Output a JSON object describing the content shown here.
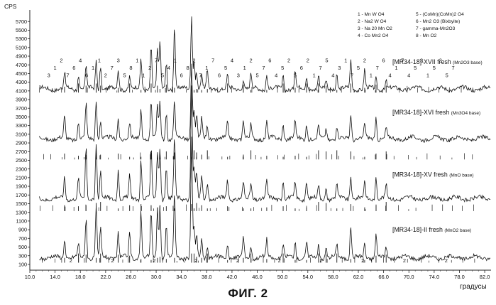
{
  "figure": {
    "caption": "ФИГ. 2",
    "y_unit": "CPS",
    "x_unit": "градусы"
  },
  "legend": {
    "items": [
      "1 - Mn W O4",
      "2 - Na2 W O4",
      "3 - Na 20 Mn O2",
      "4 - Co Mn2 O4",
      "5 - (CoMn)(CoMn)2 O4",
      "6 - Mn2 O3 (Bixbyite)",
      "7 - gamma-Mn2O3",
      "8 - Mn O2"
    ]
  },
  "chart_data": {
    "type": "line",
    "xlabel": "градусы",
    "ylabel": "CPS",
    "xlim": [
      10.0,
      83.0
    ],
    "ylim": [
      0,
      5900
    ],
    "x_ticks": [
      "10.0",
      "14.0",
      "18.0",
      "22.0",
      "26.0",
      "30.0",
      "34.0",
      "38.0",
      "42.0",
      "46.0",
      "50.0",
      "54.0",
      "58.0",
      "62.0",
      "66.0",
      "70.0",
      "74.0",
      "78.0",
      "82.0"
    ],
    "y_ticks": [
      "100",
      "300",
      "500",
      "700",
      "900",
      "1100",
      "1300",
      "1500",
      "1700",
      "1900",
      "2100",
      "2300",
      "2500",
      "2700",
      "2900",
      "3100",
      "3300",
      "3500",
      "3700",
      "3900",
      "4100",
      "4300",
      "4500",
      "4700",
      "4900",
      "5100",
      "5300",
      "5500",
      "5700"
    ],
    "peaks_2theta": [
      15.5,
      17.7,
      18.9,
      20.5,
      21.2,
      24.0,
      25.8,
      27.6,
      29.2,
      30.2,
      30.6,
      31.6,
      32.9,
      35.6,
      36.0,
      36.4,
      37.2,
      38.1,
      41.3,
      43.8,
      45.0,
      47.5,
      50.1,
      52.0,
      53.8,
      55.7,
      56.9,
      58.6,
      60.8,
      63.0,
      64.8,
      66.4
    ],
    "series": [
      {
        "name": "[MR34-18]-XVII fresh",
        "note": "(Mn2O3 base)",
        "baseline": 4150,
        "intensities": [
          360,
          300,
          550,
          650,
          550,
          450,
          300,
          700,
          1000,
          900,
          1100,
          600,
          1500,
          1750,
          700,
          400,
          350,
          400,
          300,
          250,
          350,
          350,
          300,
          450,
          300,
          300,
          200,
          350,
          650,
          450,
          250,
          200
        ]
      },
      {
        "name": "[MR34-18]-XVI fresh",
        "note": "(Mn3O4 base)",
        "baseline": 3000,
        "intensities": [
          500,
          400,
          800,
          900,
          450,
          500,
          350,
          700,
          900,
          800,
          850,
          600,
          900,
          1750,
          650,
          550,
          450,
          300,
          350,
          450,
          300,
          400,
          350,
          400,
          350,
          300,
          250,
          300,
          600,
          350,
          500,
          250
        ]
      },
      {
        "name": "[MR34-18]-XV fresh",
        "note": "(MnO base)",
        "baseline": 1620,
        "intensities": [
          500,
          450,
          1200,
          1300,
          650,
          700,
          500,
          900,
          1200,
          1100,
          1200,
          800,
          1400,
          2650,
          700,
          600,
          500,
          350,
          450,
          350,
          350,
          400,
          450,
          350,
          400,
          300,
          250,
          350,
          550,
          400,
          500,
          300
        ]
      },
      {
        "name": "[MR34-18]-II fresh",
        "note": "(MnO2 base)",
        "baseline": 260,
        "intensities": [
          450,
          300,
          950,
          1150,
          650,
          600,
          550,
          1100,
          1050,
          1150,
          1200,
          750,
          1500,
          2750,
          650,
          500,
          450,
          300,
          350,
          450,
          300,
          400,
          300,
          350,
          350,
          300,
          250,
          300,
          750,
          350,
          550,
          250
        ]
      }
    ],
    "top_peak_labels": [
      "3",
      "1",
      "2",
      "7",
      "6",
      "4",
      "6",
      "1",
      "1",
      "2",
      "7",
      "3",
      "5",
      "8",
      "1",
      "1",
      "2",
      "7",
      "5",
      "4",
      "1",
      "6",
      "8",
      "2",
      "7",
      "1",
      "7",
      "6",
      "5",
      "4",
      "3",
      "1",
      "2",
      "5",
      "7",
      "6",
      "4",
      "5",
      "2",
      "5",
      "6",
      "2",
      "1",
      "7",
      "5",
      "4",
      "3",
      "1",
      "7",
      "5",
      "2",
      "1",
      "7",
      "6",
      "4",
      "1",
      "7",
      "4",
      "5",
      "3",
      "1",
      "5",
      "2",
      "5",
      "7"
    ],
    "bottom_peak_labels": [
      "2",
      "2",
      "2",
      "2",
      "2",
      "2",
      "2",
      "2",
      "2",
      "2"
    ],
    "grid": false,
    "legend_position": "top-right"
  }
}
